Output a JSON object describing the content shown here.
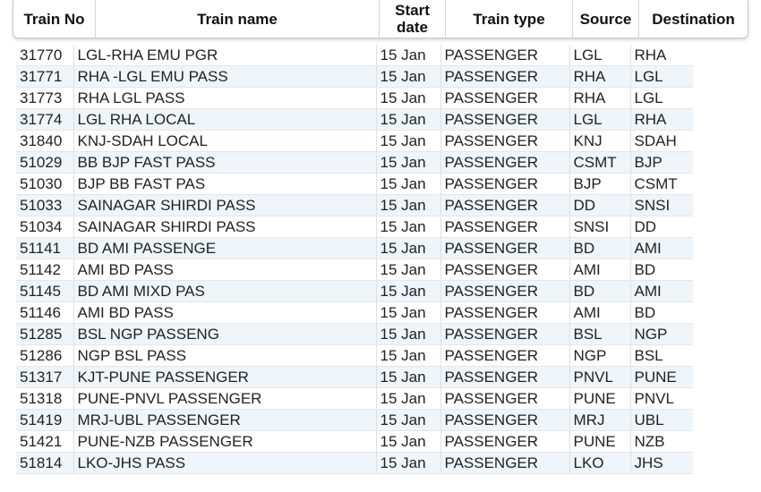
{
  "header": {
    "train_no": "Train No",
    "train_name": "Train name",
    "start_date_line1": "Start",
    "start_date_line2": "date",
    "train_type": "Train type",
    "source": "Source",
    "destination": "Destination"
  },
  "colors": {
    "station_text": "#e0218a",
    "stripe": "#eef5fb"
  },
  "rows": [
    {
      "no": "31770",
      "name": "LGL-RHA EMU PGR",
      "date": "15 Jan",
      "type": "PASSENGER",
      "src": "LGL",
      "dst": "RHA"
    },
    {
      "no": "31771",
      "name": "RHA -LGL EMU PASS",
      "date": "15 Jan",
      "type": "PASSENGER",
      "src": "RHA",
      "dst": "LGL"
    },
    {
      "no": "31773",
      "name": "RHA LGL PASS",
      "date": "15 Jan",
      "type": "PASSENGER",
      "src": "RHA",
      "dst": "LGL"
    },
    {
      "no": "31774",
      "name": "LGL RHA LOCAL",
      "date": "15 Jan",
      "type": "PASSENGER",
      "src": "LGL",
      "dst": "RHA"
    },
    {
      "no": "31840",
      "name": "KNJ-SDAH LOCAL",
      "date": "15 Jan",
      "type": "PASSENGER",
      "src": "KNJ",
      "dst": "SDAH"
    },
    {
      "no": "51029",
      "name": "BB BJP FAST PASS",
      "date": "15 Jan",
      "type": "PASSENGER",
      "src": "CSMT",
      "dst": "BJP"
    },
    {
      "no": "51030",
      "name": "BJP BB FAST PAS",
      "date": "15 Jan",
      "type": "PASSENGER",
      "src": "BJP",
      "dst": "CSMT"
    },
    {
      "no": "51033",
      "name": "SAINAGAR SHIRDI PASS",
      "date": "15 Jan",
      "type": "PASSENGER",
      "src": "DD",
      "dst": "SNSI"
    },
    {
      "no": "51034",
      "name": "SAINAGAR SHIRDI PASS",
      "date": "15 Jan",
      "type": "PASSENGER",
      "src": "SNSI",
      "dst": "DD"
    },
    {
      "no": "51141",
      "name": "BD AMI PASSENGE",
      "date": "15 Jan",
      "type": "PASSENGER",
      "src": "BD",
      "dst": "AMI"
    },
    {
      "no": "51142",
      "name": "AMI BD PASS",
      "date": "15 Jan",
      "type": "PASSENGER",
      "src": "AMI",
      "dst": "BD"
    },
    {
      "no": "51145",
      "name": "BD AMI MIXD PAS",
      "date": "15 Jan",
      "type": "PASSENGER",
      "src": "BD",
      "dst": "AMI"
    },
    {
      "no": "51146",
      "name": "AMI BD PASS",
      "date": "15 Jan",
      "type": "PASSENGER",
      "src": "AMI",
      "dst": "BD"
    },
    {
      "no": "51285",
      "name": "BSL NGP PASSENG",
      "date": "15 Jan",
      "type": "PASSENGER",
      "src": "BSL",
      "dst": "NGP"
    },
    {
      "no": "51286",
      "name": "NGP BSL PASS",
      "date": "15 Jan",
      "type": "PASSENGER",
      "src": "NGP",
      "dst": "BSL"
    },
    {
      "no": "51317",
      "name": "KJT-PUNE PASSENGER",
      "date": "15 Jan",
      "type": "PASSENGER",
      "src": "PNVL",
      "dst": "PUNE"
    },
    {
      "no": "51318",
      "name": "PUNE-PNVL PASSENGER",
      "date": "15 Jan",
      "type": "PASSENGER",
      "src": "PUNE",
      "dst": "PNVL"
    },
    {
      "no": "51419",
      "name": "MRJ-UBL PASSENGER",
      "date": "15 Jan",
      "type": "PASSENGER",
      "src": "MRJ",
      "dst": "UBL"
    },
    {
      "no": "51421",
      "name": "PUNE-NZB PASSENGER",
      "date": "15 Jan",
      "type": "PASSENGER",
      "src": "PUNE",
      "dst": "NZB"
    },
    {
      "no": "51814",
      "name": "LKO-JHS PASS",
      "date": "15 Jan",
      "type": "PASSENGER",
      "src": "LKO",
      "dst": "JHS"
    }
  ]
}
